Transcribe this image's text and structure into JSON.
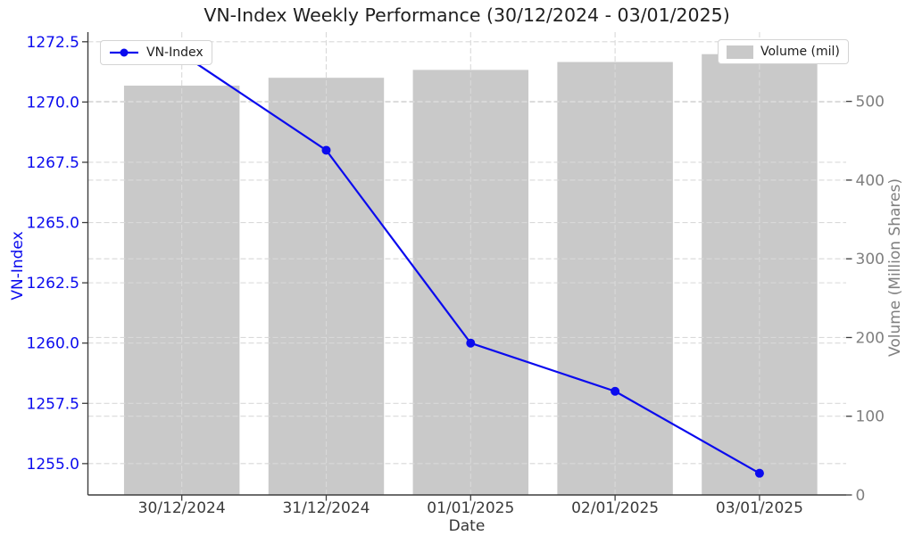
{
  "title": "VN-Index Weekly Performance (30/12/2024 - 03/01/2025)",
  "legends": {
    "vnindex_label": "VN-Index",
    "volume_label": "Volume (mil)"
  },
  "axes": {
    "x": {
      "label": "Date",
      "categories": [
        "30/12/2024",
        "31/12/2024",
        "01/01/2025",
        "02/01/2025",
        "03/01/2025"
      ]
    },
    "y_left": {
      "label": "VN-Index",
      "tick_values": [
        1255.0,
        1257.5,
        1260.0,
        1262.5,
        1265.0,
        1267.5,
        1270.0,
        1272.5
      ],
      "tick_labels": [
        "1255.0",
        "1257.5",
        "1260.0",
        "1262.5",
        "1265.0",
        "1267.5",
        "1270.0",
        "1272.5"
      ],
      "range": [
        1253.7,
        1272.9
      ],
      "color": "#0b0bee"
    },
    "y_right": {
      "label": "Volume (Million Shares)",
      "tick_values": [
        0,
        100,
        200,
        300,
        400,
        500
      ],
      "tick_labels": [
        "0",
        "100",
        "200",
        "300",
        "400",
        "500"
      ],
      "range": [
        0,
        588
      ],
      "color": "#7f7f7f"
    }
  },
  "chart_data": {
    "type": "combo",
    "categories": [
      "30/12/2024",
      "31/12/2024",
      "01/01/2025",
      "02/01/2025",
      "03/01/2025"
    ],
    "series": [
      {
        "name": "VN-Index",
        "type": "line",
        "axis": "left",
        "marker": "circle",
        "color": "#0b0bee",
        "values": [
          1272.0,
          1268.0,
          1260.0,
          1258.0,
          1254.6
        ]
      },
      {
        "name": "Volume (mil)",
        "type": "bar",
        "axis": "right",
        "color": "#c9c9c9",
        "values": [
          520,
          530,
          540,
          550,
          560
        ]
      }
    ],
    "title": "VN-Index Weekly Performance (30/12/2024 - 03/01/2025)",
    "xlabel": "Date",
    "ylabel_left": "VN-Index",
    "ylabel_right": "Volume (Million Shares)",
    "ylim_left": [
      1253.7,
      1272.9
    ],
    "ylim_right": [
      0,
      588
    ],
    "bar_width_fraction": 0.8,
    "grid": true,
    "grid_style": "dashed",
    "legend_positions": {
      "vnindex": "upper left",
      "volume": "upper right"
    }
  },
  "colors": {
    "line": "#0b0bee",
    "bar": "#c9c9c9",
    "grid": "#d9d9d9",
    "spine": "#3d3d3d",
    "tick_mark": "#3d3d3d",
    "x_tick_text": "#3a3a3a",
    "left_tick_text": "#0b0bee",
    "right_tick_text": "#7f7f7f",
    "title_text": "#1f1f1f",
    "background": "#ffffff",
    "legend_border": "#d4d4d4"
  }
}
